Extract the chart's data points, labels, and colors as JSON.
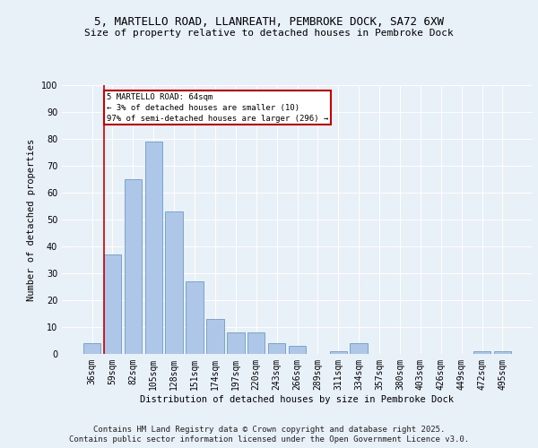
{
  "title_line1": "5, MARTELLO ROAD, LLANREATH, PEMBROKE DOCK, SA72 6XW",
  "title_line2": "Size of property relative to detached houses in Pembroke Dock",
  "xlabel": "Distribution of detached houses by size in Pembroke Dock",
  "ylabel": "Number of detached properties",
  "categories": [
    "36sqm",
    "59sqm",
    "82sqm",
    "105sqm",
    "128sqm",
    "151sqm",
    "174sqm",
    "197sqm",
    "220sqm",
    "243sqm",
    "266sqm",
    "289sqm",
    "311sqm",
    "334sqm",
    "357sqm",
    "380sqm",
    "403sqm",
    "426sqm",
    "449sqm",
    "472sqm",
    "495sqm"
  ],
  "values": [
    4,
    37,
    65,
    79,
    53,
    27,
    13,
    8,
    8,
    4,
    3,
    0,
    1,
    4,
    0,
    0,
    0,
    0,
    0,
    1,
    1
  ],
  "bar_color": "#aec6e8",
  "bar_edge_color": "#5a8fc0",
  "highlight_line_color": "#cc0000",
  "annotation_box_text": "5 MARTELLO ROAD: 64sqm\n← 3% of detached houses are smaller (10)\n97% of semi-detached houses are larger (296) →",
  "annotation_box_color": "#cc0000",
  "annotation_box_bg": "#ffffff",
  "ylim": [
    0,
    100
  ],
  "yticks": [
    0,
    10,
    20,
    30,
    40,
    50,
    60,
    70,
    80,
    90,
    100
  ],
  "bg_color": "#e8f0f8",
  "footer_line1": "Contains HM Land Registry data © Crown copyright and database right 2025.",
  "footer_line2": "Contains public sector information licensed under the Open Government Licence v3.0.",
  "title_fontsize": 9,
  "subtitle_fontsize": 8,
  "footer_fontsize": 6.5
}
